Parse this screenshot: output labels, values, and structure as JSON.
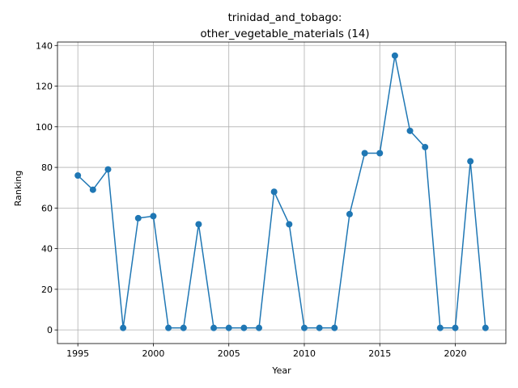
{
  "chart_data": {
    "type": "line",
    "title": "trinidad_and_tobago:",
    "subtitle": "other_vegetable_materials (14)",
    "xlabel": "Year",
    "ylabel": "Ranking",
    "xlim": [
      1993.65,
      2023.35
    ],
    "ylim": [
      -6.7,
      141.7
    ],
    "xticks": [
      1995,
      2000,
      2005,
      2010,
      2015,
      2020
    ],
    "yticks": [
      0,
      20,
      40,
      60,
      80,
      100,
      120,
      140
    ],
    "grid": true,
    "series_color": "#1f77b4",
    "series": [
      {
        "x": [
          1995,
          1996,
          1997,
          1998,
          1999,
          2000,
          2001,
          2002,
          2003,
          2004,
          2005,
          2006,
          2007,
          2008,
          2009,
          2010,
          2011,
          2012,
          2013,
          2014,
          2015,
          2016,
          2017,
          2018,
          2019,
          2020,
          2021,
          2022
        ],
        "y": [
          76,
          69,
          79,
          1,
          55,
          56,
          1,
          1,
          52,
          1,
          1,
          1,
          1,
          68,
          52,
          1,
          1,
          1,
          57,
          87,
          87,
          135,
          98,
          90,
          1,
          1,
          83,
          1
        ]
      }
    ]
  }
}
